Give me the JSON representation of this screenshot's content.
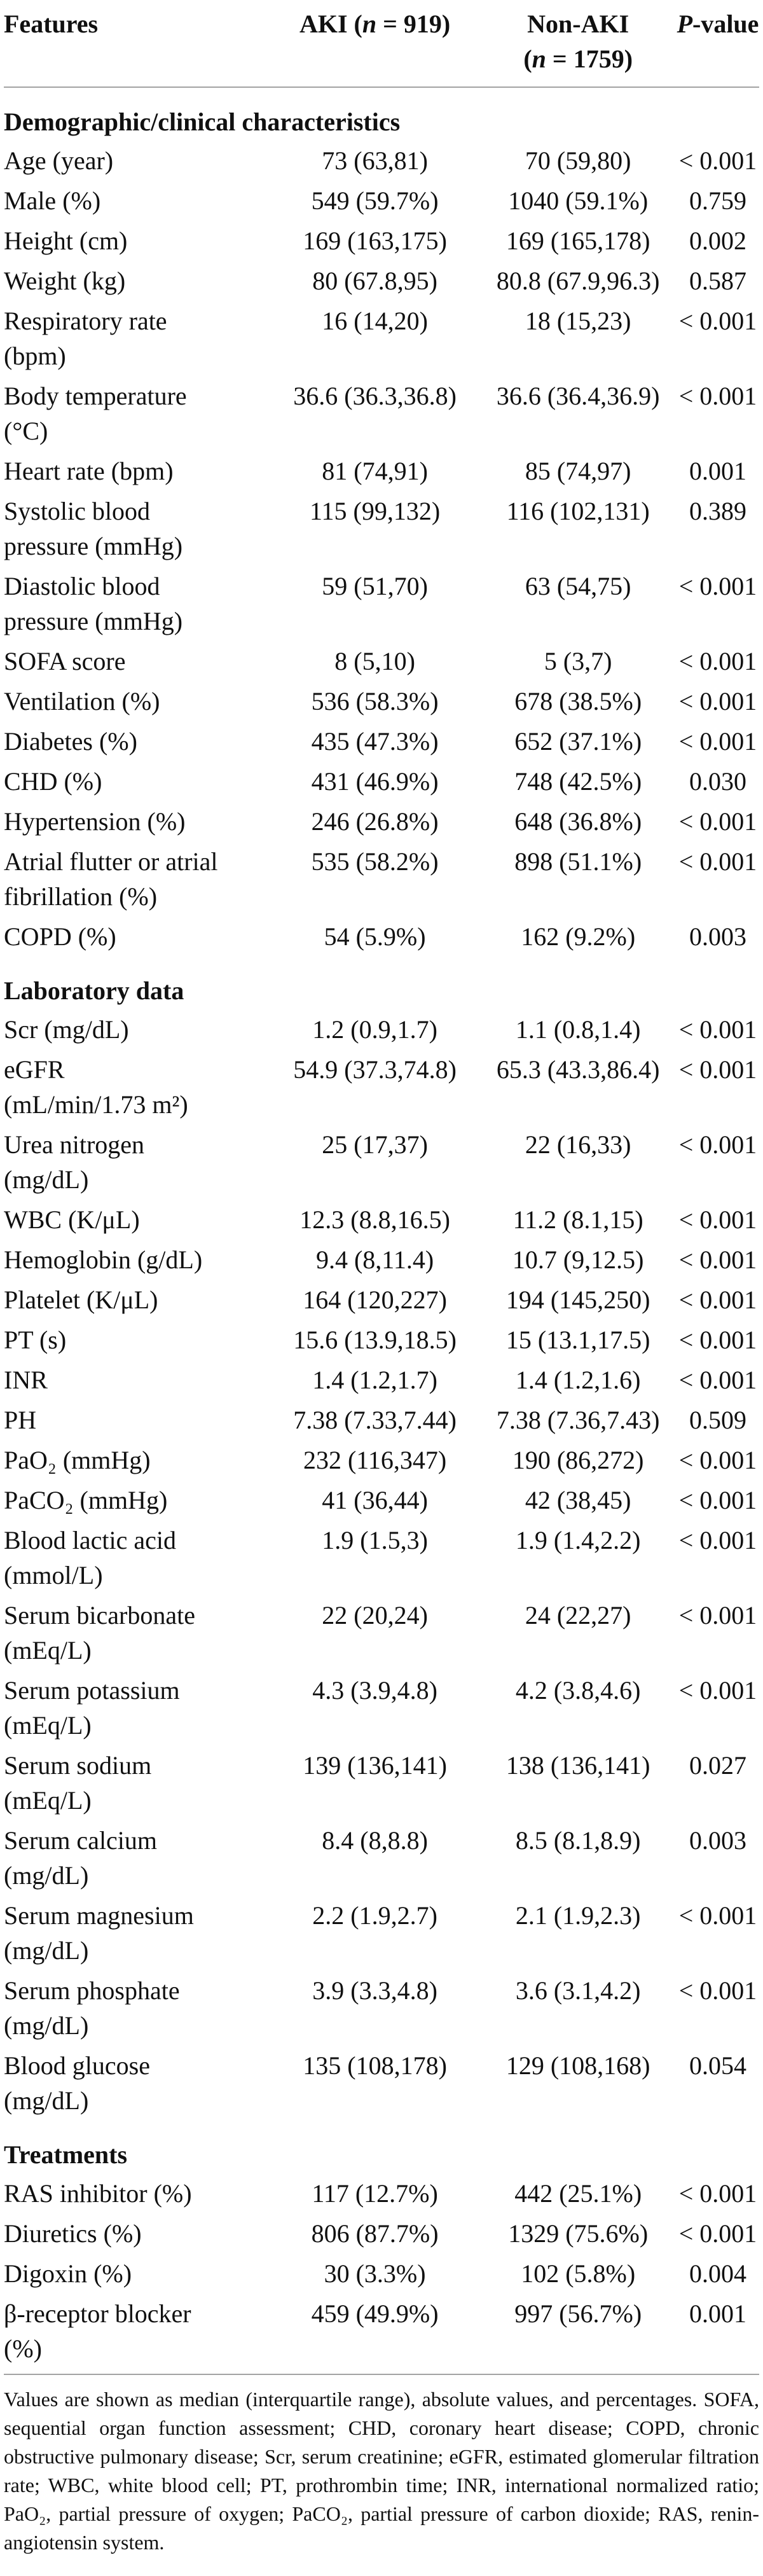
{
  "page": {
    "background_color": "#ffffff",
    "text_color": "#101010",
    "rule_color": "#a3a3a3"
  },
  "table": {
    "header": {
      "features": "Features",
      "aki": {
        "pre": "AKI (",
        "n": "n",
        "post": " = 919)"
      },
      "non_aki": {
        "line1": "Non-AKI",
        "pre": "(",
        "n": "n",
        "post": " = 1759)"
      },
      "p_value": {
        "italic": "P",
        "post": "-value"
      }
    },
    "sections": [
      {
        "title": "Demographic/clinical characteristics",
        "rows": [
          {
            "feature_lines": [
              "Age (year)"
            ],
            "aki": "73 (63,81)",
            "non_aki": "70 (59,80)",
            "p": "< 0.001"
          },
          {
            "feature_lines": [
              "Male (%)"
            ],
            "aki": "549 (59.7%)",
            "non_aki": "1040 (59.1%)",
            "p": "0.759"
          },
          {
            "feature_lines": [
              "Height (cm)"
            ],
            "aki": "169 (163,175)",
            "non_aki": "169 (165,178)",
            "p": "0.002"
          },
          {
            "feature_lines": [
              "Weight (kg)"
            ],
            "aki": "80 (67.8,95)",
            "non_aki": "80.8 (67.9,96.3)",
            "p": "0.587"
          },
          {
            "feature_lines": [
              "Respiratory rate",
              "(bpm)"
            ],
            "aki": "16 (14,20)",
            "non_aki": "18 (15,23)",
            "p": "< 0.001"
          },
          {
            "feature_lines": [
              "Body temperature",
              "(°C)"
            ],
            "aki": "36.6 (36.3,36.8)",
            "non_aki": "36.6 (36.4,36.9)",
            "p": "< 0.001"
          },
          {
            "feature_lines": [
              "Heart rate (bpm)"
            ],
            "aki": "81 (74,91)",
            "non_aki": "85 (74,97)",
            "p": "0.001"
          },
          {
            "feature_lines": [
              "Systolic blood",
              "pressure (mmHg)"
            ],
            "aki": "115 (99,132)",
            "non_aki": "116 (102,131)",
            "p": "0.389"
          },
          {
            "feature_lines": [
              "Diastolic blood",
              "pressure (mmHg)"
            ],
            "aki": "59 (51,70)",
            "non_aki": "63 (54,75)",
            "p": "< 0.001"
          },
          {
            "feature_lines": [
              "SOFA score"
            ],
            "aki": "8 (5,10)",
            "non_aki": "5 (3,7)",
            "p": "< 0.001"
          },
          {
            "feature_lines": [
              "Ventilation (%)"
            ],
            "aki": "536 (58.3%)",
            "non_aki": "678 (38.5%)",
            "p": "< 0.001"
          },
          {
            "feature_lines": [
              "Diabetes (%)"
            ],
            "aki": "435 (47.3%)",
            "non_aki": "652 (37.1%)",
            "p": "< 0.001"
          },
          {
            "feature_lines": [
              "CHD (%)"
            ],
            "aki": "431 (46.9%)",
            "non_aki": "748 (42.5%)",
            "p": "0.030"
          },
          {
            "feature_lines": [
              "Hypertension (%)"
            ],
            "aki": "246 (26.8%)",
            "non_aki": "648 (36.8%)",
            "p": "< 0.001"
          },
          {
            "feature_lines": [
              "Atrial flutter or atrial",
              "fibrillation (%)"
            ],
            "aki": "535 (58.2%)",
            "non_aki": "898 (51.1%)",
            "p": "< 0.001"
          },
          {
            "feature_lines": [
              "COPD (%)"
            ],
            "aki": "54 (5.9%)",
            "non_aki": "162 (9.2%)",
            "p": "0.003"
          }
        ]
      },
      {
        "title": "Laboratory data",
        "rows": [
          {
            "feature_lines": [
              "Scr (mg/dL)"
            ],
            "aki": "1.2 (0.9,1.7)",
            "non_aki": "1.1 (0.8,1.4)",
            "p": "< 0.001"
          },
          {
            "feature_lines": [
              "eGFR",
              "(mL/min/1.73 m²)"
            ],
            "aki": "54.9 (37.3,74.8)",
            "non_aki": "65.3 (43.3,86.4)",
            "p": "< 0.001"
          },
          {
            "feature_lines": [
              "Urea nitrogen",
              "(mg/dL)"
            ],
            "aki": "25 (17,37)",
            "non_aki": "22 (16,33)",
            "p": "< 0.001"
          },
          {
            "feature_lines": [
              "WBC (K/μL)"
            ],
            "aki": "12.3 (8.8,16.5)",
            "non_aki": "11.2 (8.1,15)",
            "p": "< 0.001"
          },
          {
            "feature_lines": [
              "Hemoglobin (g/dL)"
            ],
            "aki": "9.4 (8,11.4)",
            "non_aki": "10.7 (9,12.5)",
            "p": "< 0.001"
          },
          {
            "feature_lines": [
              "Platelet (K/μL)"
            ],
            "aki": "164 (120,227)",
            "non_aki": "194 (145,250)",
            "p": "< 0.001"
          },
          {
            "feature_lines": [
              "PT (s)"
            ],
            "aki": "15.6 (13.9,18.5)",
            "non_aki": "15 (13.1,17.5)",
            "p": "< 0.001"
          },
          {
            "feature_lines": [
              "INR"
            ],
            "aki": "1.4 (1.2,1.7)",
            "non_aki": "1.4 (1.2,1.6)",
            "p": "< 0.001"
          },
          {
            "feature_lines": [
              "PH"
            ],
            "aki": "7.38 (7.33,7.44)",
            "non_aki": "7.38 (7.36,7.43)",
            "p": "0.509"
          },
          {
            "feature_lines": [
              "PaO₂ (mmHg)"
            ],
            "aki": "232 (116,347)",
            "non_aki": "190 (86,272)",
            "p": "< 0.001"
          },
          {
            "feature_lines": [
              "PaCO₂ (mmHg)"
            ],
            "aki": "41 (36,44)",
            "non_aki": "42 (38,45)",
            "p": "< 0.001"
          },
          {
            "feature_lines": [
              "Blood lactic acid",
              "(mmol/L)"
            ],
            "aki": "1.9 (1.5,3)",
            "non_aki": "1.9 (1.4,2.2)",
            "p": "< 0.001"
          },
          {
            "feature_lines": [
              "Serum bicarbonate",
              "(mEq/L)"
            ],
            "aki": "22 (20,24)",
            "non_aki": "24 (22,27)",
            "p": "< 0.001"
          },
          {
            "feature_lines": [
              "Serum potassium",
              "(mEq/L)"
            ],
            "aki": "4.3 (3.9,4.8)",
            "non_aki": "4.2 (3.8,4.6)",
            "p": "< 0.001"
          },
          {
            "feature_lines": [
              "Serum sodium",
              "(mEq/L)"
            ],
            "aki": "139 (136,141)",
            "non_aki": "138 (136,141)",
            "p": "0.027"
          },
          {
            "feature_lines": [
              "Serum calcium",
              "(mg/dL)"
            ],
            "aki": "8.4 (8,8.8)",
            "non_aki": "8.5 (8.1,8.9)",
            "p": "0.003"
          },
          {
            "feature_lines": [
              "Serum magnesium",
              "(mg/dL)"
            ],
            "aki": "2.2 (1.9,2.7)",
            "non_aki": "2.1 (1.9,2.3)",
            "p": "< 0.001"
          },
          {
            "feature_lines": [
              "Serum phosphate",
              "(mg/dL)"
            ],
            "aki": "3.9 (3.3,4.8)",
            "non_aki": "3.6 (3.1,4.2)",
            "p": "< 0.001"
          },
          {
            "feature_lines": [
              "Blood glucose",
              "(mg/dL)"
            ],
            "aki": "135 (108,178)",
            "non_aki": "129 (108,168)",
            "p": "0.054"
          }
        ]
      },
      {
        "title": "Treatments",
        "rows": [
          {
            "feature_lines": [
              "RAS inhibitor (%)"
            ],
            "aki": "117 (12.7%)",
            "non_aki": "442 (25.1%)",
            "p": "< 0.001"
          },
          {
            "feature_lines": [
              "Diuretics (%)"
            ],
            "aki": "806 (87.7%)",
            "non_aki": "1329 (75.6%)",
            "p": "< 0.001"
          },
          {
            "feature_lines": [
              "Digoxin (%)"
            ],
            "aki": "30 (3.3%)",
            "non_aki": "102 (5.8%)",
            "p": "0.004"
          },
          {
            "feature_lines": [
              "β-receptor blocker",
              "(%)"
            ],
            "aki": "459 (49.9%)",
            "non_aki": "997 (56.7%)",
            "p": "0.001"
          }
        ]
      }
    ]
  },
  "footnote": "Values are shown as median (interquartile range), absolute values, and percentages. SOFA, sequential organ function assessment; CHD, coronary heart disease; COPD, chronic obstructive pulmonary disease; Scr, serum creatinine; eGFR, estimated glomerular filtration rate; WBC, white blood cell; PT, prothrombin time; INR, international normalized ratio; PaO₂, partial pressure of oxygen; PaCO₂, partial pressure of carbon dioxide; RAS, renin-angiotensin system."
}
